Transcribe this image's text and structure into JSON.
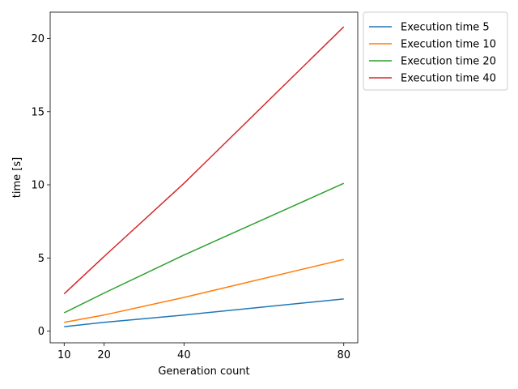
{
  "chart_data": {
    "type": "line",
    "title": "",
    "xlabel": "Generation count",
    "ylabel": "time [s]",
    "x": [
      10,
      20,
      40,
      80
    ],
    "xticks": [
      10,
      20,
      40,
      80
    ],
    "yticks": [
      0,
      5,
      10,
      15,
      20
    ],
    "xlim": [
      6.5,
      83.5
    ],
    "ylim": [
      -0.8,
      21.8
    ],
    "grid": false,
    "legend_position": "outside upper right",
    "series": [
      {
        "name": "Execution time 5",
        "color": "#1f77b4",
        "values": [
          0.3,
          0.6,
          1.1,
          2.2
        ]
      },
      {
        "name": "Execution time 10",
        "color": "#ff7f0e",
        "values": [
          0.6,
          1.1,
          2.3,
          4.9
        ]
      },
      {
        "name": "Execution time 20",
        "color": "#2ca02c",
        "values": [
          1.25,
          2.6,
          5.2,
          10.1
        ]
      },
      {
        "name": "Execution time 40",
        "color": "#d62728",
        "values": [
          2.55,
          5.1,
          10.1,
          20.8
        ]
      }
    ]
  }
}
